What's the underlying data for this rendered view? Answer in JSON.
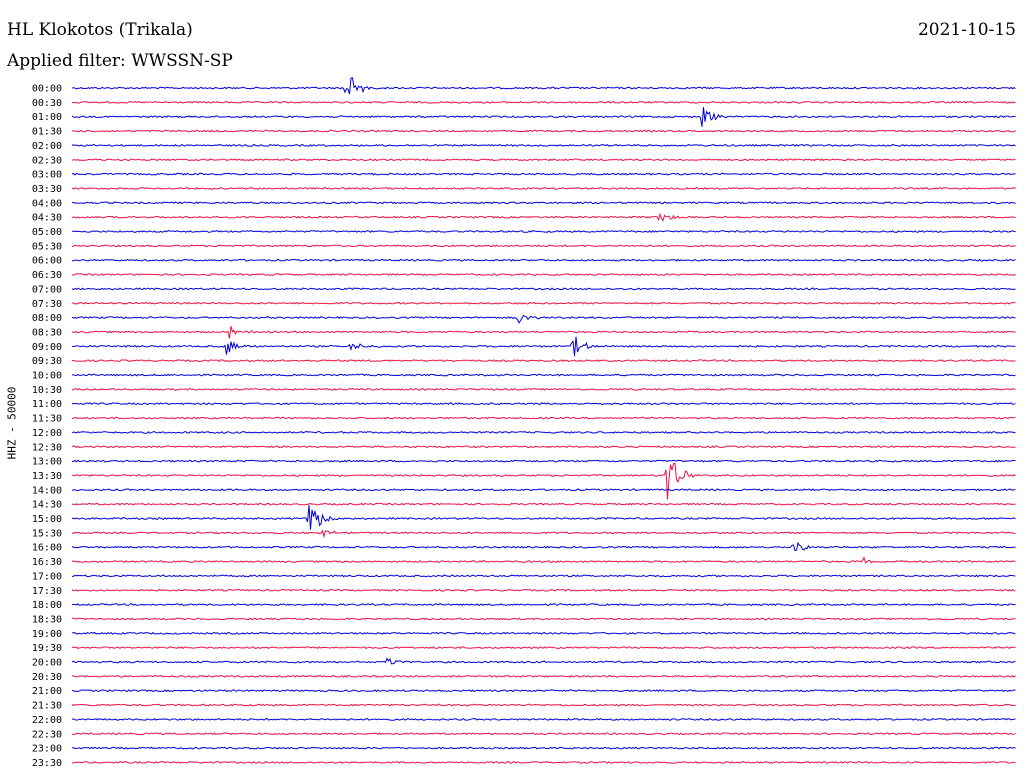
{
  "header": {
    "station": "HL Klokotos (Trikala)",
    "date": "2021-10-15",
    "filter": "Applied filter: WWSSN-SP"
  },
  "channel_label": "HHZ - 50000",
  "colors": {
    "trace_a": "#0000dd",
    "trace_b": "#ee1144",
    "text": "#000000",
    "background": "#ffffff"
  },
  "chart_data": {
    "type": "line",
    "x": [
      "00:00",
      "00:30",
      "01:00",
      "01:30",
      "02:00",
      "02:30",
      "03:00",
      "03:30",
      "04:00",
      "04:30",
      "05:00",
      "05:30",
      "06:00",
      "06:30",
      "07:00",
      "07:30",
      "08:00",
      "08:30",
      "09:00",
      "09:30",
      "10:00",
      "10:30",
      "11:00",
      "11:30",
      "12:00",
      "12:30",
      "13:00",
      "13:30",
      "14:00",
      "14:30",
      "15:00",
      "15:30",
      "16:00",
      "16:30",
      "17:00",
      "17:30",
      "18:00",
      "18:30",
      "19:00",
      "19:30",
      "20:00",
      "20:30",
      "21:00",
      "21:30",
      "22:00",
      "22:30",
      "23:00",
      "23:30"
    ],
    "row_span_minutes": 30,
    "alternating_colors": [
      "#0000dd",
      "#ee1144"
    ],
    "ylabel": "HHZ - 50000",
    "events": [
      {
        "row": "00:00",
        "minute": 8.7,
        "amplitude": 1.7
      },
      {
        "row": "01:00",
        "minute": 20.0,
        "amplitude": 0.9
      },
      {
        "row": "04:30",
        "minute": 18.6,
        "amplitude": 0.55
      },
      {
        "row": "08:00",
        "minute": 14.2,
        "amplitude": 0.55
      },
      {
        "row": "08:30",
        "minute": 5.0,
        "amplitude": 0.45
      },
      {
        "row": "09:00",
        "minute": 4.9,
        "amplitude": 0.75
      },
      {
        "row": "09:00",
        "minute": 8.8,
        "amplitude": 0.45
      },
      {
        "row": "09:00",
        "minute": 15.9,
        "amplitude": 0.95
      },
      {
        "row": "13:30",
        "minute": 18.9,
        "amplitude": 2.3
      },
      {
        "row": "15:00",
        "minute": 7.5,
        "amplitude": 1.7
      },
      {
        "row": "15:30",
        "minute": 7.9,
        "amplitude": 0.4
      },
      {
        "row": "16:00",
        "minute": 22.9,
        "amplitude": 0.55
      },
      {
        "row": "16:30",
        "minute": 25.1,
        "amplitude": 0.3
      },
      {
        "row": "20:00",
        "minute": 10.0,
        "amplitude": 0.35
      }
    ]
  }
}
